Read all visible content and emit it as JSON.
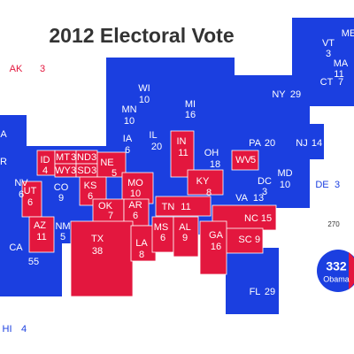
{
  "title": "2012 Electoral Vote",
  "states": [
    {
      "abbr": "AK",
      "votes": "3",
      "color": "#e3173e"
    },
    {
      "abbr": "A",
      "color": "#1b3fe0"
    },
    {
      "abbr": "R",
      "color": "#1b3fe0"
    },
    {
      "abbr": "ID",
      "votes": "4",
      "color": "#e3173e"
    },
    {
      "abbr": "MT",
      "votes": "3",
      "color": "#e3173e"
    },
    {
      "abbr": "ND",
      "votes": "3",
      "color": "#e3173e"
    },
    {
      "abbr": "WY",
      "votes": "3",
      "color": "#e3173e"
    },
    {
      "abbr": "SD",
      "votes": "3",
      "color": "#e3173e"
    },
    {
      "abbr": "NE",
      "votes": "5",
      "color": "#e3173e"
    },
    {
      "abbr": "NV",
      "votes": "6",
      "color": "#1b3fe0"
    },
    {
      "abbr": "UT",
      "votes": "6",
      "color": "#e3173e"
    },
    {
      "abbr": "CO",
      "votes": "9",
      "color": "#1b3fe0"
    },
    {
      "abbr": "KS",
      "votes": "6",
      "color": "#e3173e"
    },
    {
      "abbr": "MO",
      "votes": "10",
      "color": "#e3173e"
    },
    {
      "abbr": "OK",
      "votes": "7",
      "color": "#e3173e"
    },
    {
      "abbr": "AR",
      "votes": "6",
      "color": "#e3173e"
    },
    {
      "abbr": "AZ",
      "votes": "11",
      "color": "#e3173e"
    },
    {
      "abbr": "NM",
      "votes": "5",
      "color": "#1b3fe0"
    },
    {
      "abbr": "TX",
      "votes": "38",
      "color": "#e3173e"
    },
    {
      "abbr": "LA",
      "votes": "8",
      "color": "#e3173e"
    },
    {
      "abbr": "MS",
      "votes": "6",
      "color": "#e3173e"
    },
    {
      "abbr": "AL",
      "votes": "9",
      "color": "#e3173e"
    },
    {
      "abbr": "CA",
      "votes": "55",
      "color": "#1b3fe0"
    },
    {
      "abbr": "HI",
      "votes": "4",
      "color": "#1b3fe0"
    },
    {
      "abbr": "WI",
      "votes": "10",
      "color": "#1b3fe0"
    },
    {
      "abbr": "MN",
      "votes": "10",
      "color": "#1b3fe0"
    },
    {
      "abbr": "IA",
      "votes": "6",
      "color": "#1b3fe0"
    },
    {
      "abbr": "IL",
      "votes": "20",
      "color": "#1b3fe0"
    },
    {
      "abbr": "MI",
      "votes": "16",
      "color": "#1b3fe0"
    },
    {
      "abbr": "IN",
      "votes": "11",
      "color": "#e3173e"
    },
    {
      "abbr": "OH",
      "votes": "18",
      "color": "#1b3fe0"
    },
    {
      "abbr": "KY",
      "votes": "8",
      "color": "#e3173e"
    },
    {
      "abbr": "TN",
      "votes": "11",
      "color": "#e3173e"
    },
    {
      "abbr": "WV",
      "votes": "5",
      "color": "#e3173e"
    },
    {
      "abbr": "PA",
      "votes": "20",
      "color": "#1b3fe0"
    },
    {
      "abbr": "NJ",
      "votes": "14",
      "color": "#1b3fe0"
    },
    {
      "abbr": "MD",
      "votes": "10",
      "color": "#1b3fe0"
    },
    {
      "abbr": "DC",
      "votes": "3",
      "color": "#1b3fe0"
    },
    {
      "abbr": "DE",
      "votes": "3",
      "color": "#1b3fe0"
    },
    {
      "abbr": "VA",
      "votes": "13",
      "color": "#1b3fe0"
    },
    {
      "abbr": "NC",
      "votes": "15",
      "color": "#e3173e"
    },
    {
      "abbr": "SC",
      "votes": "9",
      "color": "#e3173e"
    },
    {
      "abbr": "GA",
      "votes": "16",
      "color": "#e3173e"
    },
    {
      "abbr": "FL",
      "votes": "29",
      "color": "#1b3fe0"
    },
    {
      "abbr": "NY",
      "votes": "29",
      "color": "#1b3fe0"
    },
    {
      "abbr": "VT",
      "votes": "3",
      "color": "#1b3fe0"
    },
    {
      "abbr": "ME",
      "color": "#1b3fe0"
    },
    {
      "abbr": "MA",
      "votes": "11",
      "color": "#1b3fe0"
    },
    {
      "abbr": "CT",
      "votes": "7",
      "color": "#1b3fe0"
    }
  ],
  "tally": {
    "threshold": "270",
    "votes": "332",
    "name": "Obama"
  }
}
